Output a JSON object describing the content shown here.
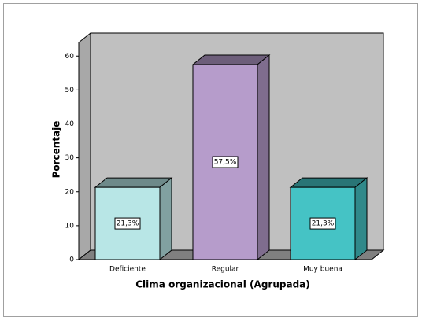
{
  "chart_data": {
    "type": "bar3d",
    "x_label": "Clima organizacional (Agrupada)",
    "y_label": "Porcentaje",
    "categories": [
      "Deficiente",
      "Regular",
      "Muy buena"
    ],
    "values": [
      21.3,
      57.5,
      21.3
    ],
    "value_labels": [
      "21,3%",
      "57,5%",
      "21,3%"
    ],
    "colors": [
      "#b8e6e6",
      "#b69ccb",
      "#45c3c5"
    ],
    "ylim": [
      0,
      64
    ],
    "yticks": [
      0,
      10,
      20,
      30,
      40,
      50,
      60
    ]
  }
}
